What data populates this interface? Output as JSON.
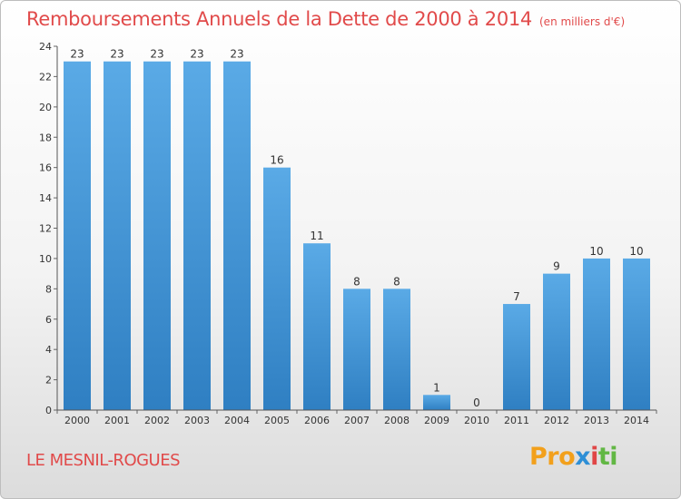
{
  "title": "Remboursements Annuels de la Dette de 2000 à 2014",
  "unit": "(en milliers d'€)",
  "commune": "LE MESNIL-ROGUES",
  "logo": {
    "part1": "Pro",
    "part2": "x",
    "part3": "i",
    "part4": "ti"
  },
  "colors": {
    "title": "#e14a4a",
    "bar_light": "#5aaae6",
    "bar_dark": "#2f7fc2"
  },
  "chart_data": {
    "type": "bar",
    "categories": [
      "2000",
      "2001",
      "2002",
      "2003",
      "2004",
      "2005",
      "2006",
      "2007",
      "2008",
      "2009",
      "2010",
      "2011",
      "2012",
      "2013",
      "2014"
    ],
    "values": [
      23,
      23,
      23,
      23,
      23,
      16,
      11,
      8,
      8,
      1,
      0,
      7,
      9,
      10,
      10
    ],
    "data_labels": [
      "23",
      "23",
      "23",
      "23",
      "23",
      "16",
      "11",
      "8",
      "8",
      "1",
      "0",
      "7",
      "9",
      "10",
      "10"
    ],
    "yticks": [
      "0",
      "2",
      "4",
      "6",
      "8",
      "10",
      "12",
      "14",
      "16",
      "18",
      "20",
      "22",
      "24"
    ],
    "ylim": [
      0,
      24
    ],
    "grid": false
  }
}
